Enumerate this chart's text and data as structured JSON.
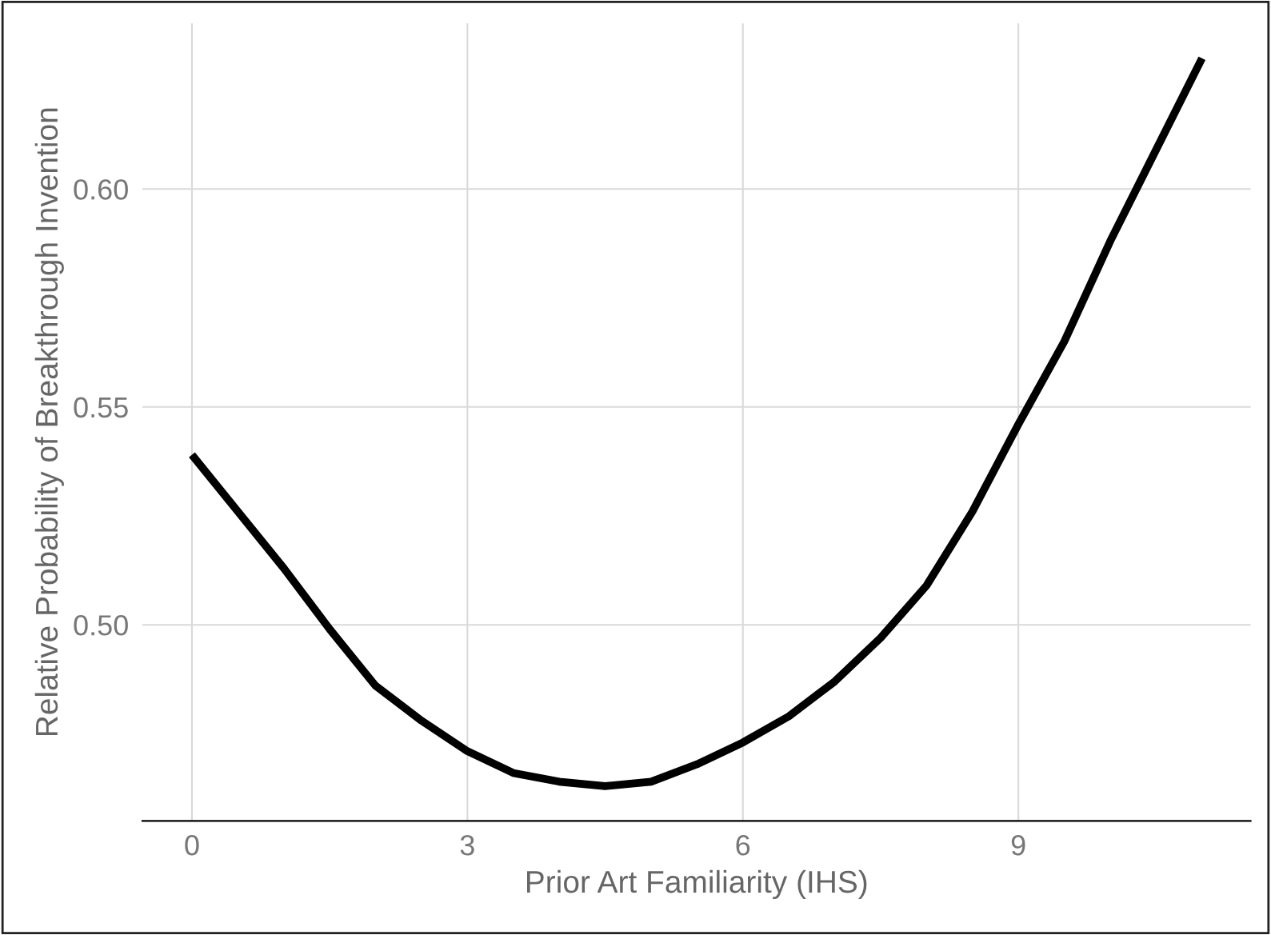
{
  "chart_data": {
    "type": "line",
    "xlabel": "Prior Art Familiarity (IHS)",
    "ylabel": "Relative Probability of Breakthrough Invention",
    "x": [
      0,
      0.5,
      1,
      1.5,
      2,
      2.5,
      3,
      3.5,
      4,
      4.5,
      5,
      5.5,
      6,
      6.5,
      7,
      7.5,
      8,
      8.5,
      9,
      9.5,
      10,
      10.5,
      11
    ],
    "series": [
      {
        "color": "#000000",
        "values": [
          0.539,
          0.526,
          0.513,
          0.499,
          0.486,
          0.478,
          0.471,
          0.466,
          0.464,
          0.463,
          0.464,
          0.468,
          0.473,
          0.479,
          0.487,
          0.497,
          0.509,
          0.526,
          0.546,
          0.565,
          0.588,
          0.609,
          0.63
        ]
      }
    ],
    "xlim": [
      -0.54,
      11.53
    ],
    "ylim": [
      0.455,
      0.638
    ],
    "xticks": [
      0,
      3,
      6,
      9
    ],
    "yticks": [
      {
        "value": 0.5,
        "label": "0.50"
      },
      0.55,
      {
        "value": 0.6,
        "label": "0.60"
      }
    ],
    "grid": true,
    "legend": false,
    "marker": "none",
    "line_style": "solid"
  }
}
